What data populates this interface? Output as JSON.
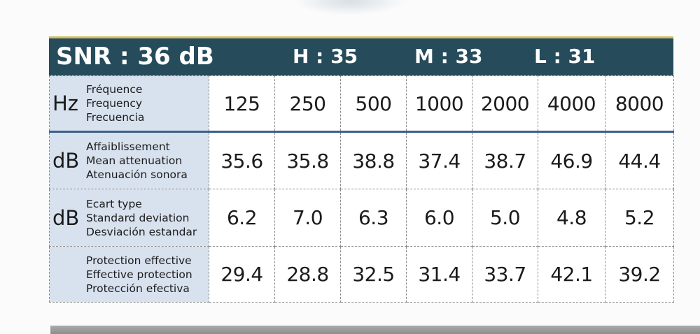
{
  "header": {
    "snr": "SNR : 36 dB",
    "h": "H : 35",
    "m": "M : 33",
    "l": "L : 31"
  },
  "frequency_row": {
    "unit": "Hz",
    "labels": [
      "Fréquence",
      "Frequency",
      "Frecuencia"
    ],
    "values": [
      "125",
      "250",
      "500",
      "1000",
      "2000",
      "4000",
      "8000"
    ]
  },
  "mean_attenuation_row": {
    "unit": "dB",
    "labels": [
      "Affaiblissement",
      "Mean attenuation",
      "Atenuación sonora"
    ],
    "values": [
      "35.6",
      "35.8",
      "38.8",
      "37.4",
      "38.7",
      "46.9",
      "44.4"
    ]
  },
  "standard_deviation_row": {
    "unit": "dB",
    "labels": [
      "Ecart type",
      "Standard deviation",
      "Desviación estandar"
    ],
    "values": [
      "6.2",
      "7.0",
      "6.3",
      "6.0",
      "5.0",
      "4.8",
      "5.2"
    ]
  },
  "effective_protection_row": {
    "labels": [
      "Protection effective",
      "Effective protection",
      "Protección efectiva"
    ],
    "values": [
      "29.4",
      "28.8",
      "32.5",
      "31.4",
      "33.7",
      "42.1",
      "39.2"
    ]
  },
  "colors": {
    "header_bg": "#264b5b",
    "header_accent": "#d4c06a",
    "row_head_bg": "#d8e1ee",
    "freq_divider": "#3a5f8a"
  }
}
